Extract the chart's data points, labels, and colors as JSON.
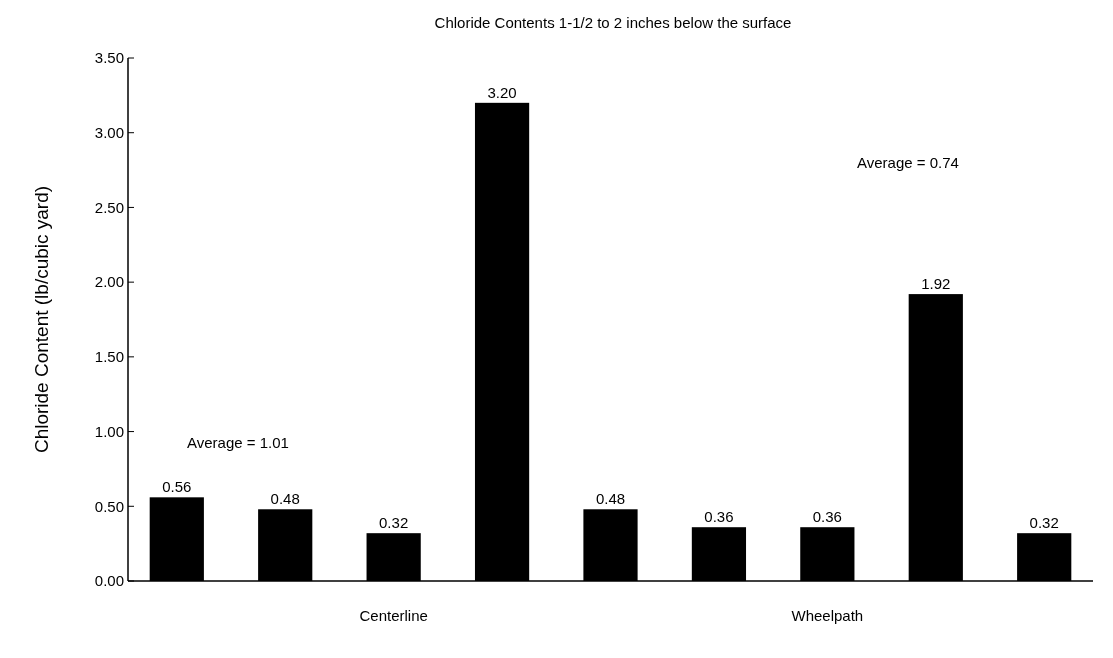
{
  "chart_data": {
    "type": "bar",
    "title": "Chloride Contents 1-1/2 to 2 inches below the surface",
    "ylabel": "Chloride Content (lb/cubic yard)",
    "categories": [
      null,
      null,
      "Centerline",
      null,
      null,
      null,
      "Wheelpath",
      null,
      null
    ],
    "values": [
      0.56,
      0.48,
      0.32,
      3.2,
      0.48,
      0.36,
      0.36,
      1.92,
      0.32
    ],
    "value_labels": [
      "0.56",
      "0.48",
      "0.32",
      "3.20",
      "0.48",
      "0.36",
      "0.36",
      "1.92",
      "0.32"
    ],
    "color": "#000000",
    "ylim": [
      0,
      3.5
    ],
    "yticks": [
      {
        "value": 0,
        "label": "0.00"
      },
      {
        "value": 0.5,
        "label": "0.50"
      },
      {
        "value": 1,
        "label": "1.00"
      },
      {
        "value": 1.5,
        "label": "1.50"
      },
      {
        "value": 2,
        "label": "2.00"
      },
      {
        "value": 2.5,
        "label": "2.50"
      },
      {
        "value": 3,
        "label": "3.00"
      },
      {
        "value": 3.5,
        "label": "3.50"
      }
    ],
    "annotations": [
      "Average = 1.01",
      "Average = 0.74"
    ],
    "grid": false
  }
}
